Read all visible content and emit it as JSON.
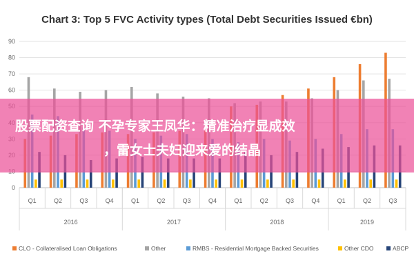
{
  "chart_data": {
    "type": "bar",
    "title": "Chart 3: Top 5 FVC Activity types (Total Debt Securities Issued €bn)",
    "ylim": [
      0,
      90
    ],
    "yticks": [
      0,
      10,
      20,
      30,
      40,
      50,
      60,
      70,
      80,
      90
    ],
    "categories": [
      "Q1",
      "Q2",
      "Q3",
      "Q4",
      "Q1",
      "Q2",
      "Q3",
      "Q4",
      "Q1",
      "Q2",
      "Q3",
      "Q4",
      "Q1",
      "Q2",
      "Q3"
    ],
    "year_groups": [
      {
        "label": "2016",
        "span": 4
      },
      {
        "label": "2017",
        "span": 4
      },
      {
        "label": "2018",
        "span": 4
      },
      {
        "label": "2019",
        "span": 3
      }
    ],
    "series": [
      {
        "name": "CLO - Collateralised Loan Obligations",
        "color": "#ed7d31",
        "values": [
          30,
          32,
          33,
          34,
          33,
          34,
          35,
          35,
          50,
          51,
          57,
          61,
          68,
          76,
          83
        ]
      },
      {
        "name": "Other",
        "color": "#a5a5a5",
        "values": [
          68,
          61,
          59,
          60,
          62,
          58,
          56,
          55,
          52,
          53,
          53,
          55,
          60,
          66,
          67
        ]
      },
      {
        "name": "RMBS - Residential Mortgage Backed Securities",
        "color": "#5b9bd5",
        "values": [
          45,
          44,
          37,
          35,
          30,
          32,
          33,
          30,
          28,
          30,
          29,
          30,
          33,
          36,
          36
        ]
      },
      {
        "name": "Other CDO",
        "color": "#ffc000",
        "values": [
          5,
          5,
          5,
          5,
          5,
          5,
          5,
          5,
          5,
          5,
          5,
          5,
          5,
          5,
          5
        ]
      },
      {
        "name": "ABCP",
        "color": "#264478",
        "values": [
          22,
          20,
          17,
          18,
          19,
          18,
          18,
          18,
          22,
          20,
          22,
          24,
          25,
          26,
          26
        ]
      }
    ],
    "legend_position": "bottom",
    "grid": true
  },
  "overlay": {
    "line1": "股票配资查询 不孕专家王凤华：精准治疗显成效",
    "line2": "，雷女士夫妇迎来爱的结晶"
  }
}
